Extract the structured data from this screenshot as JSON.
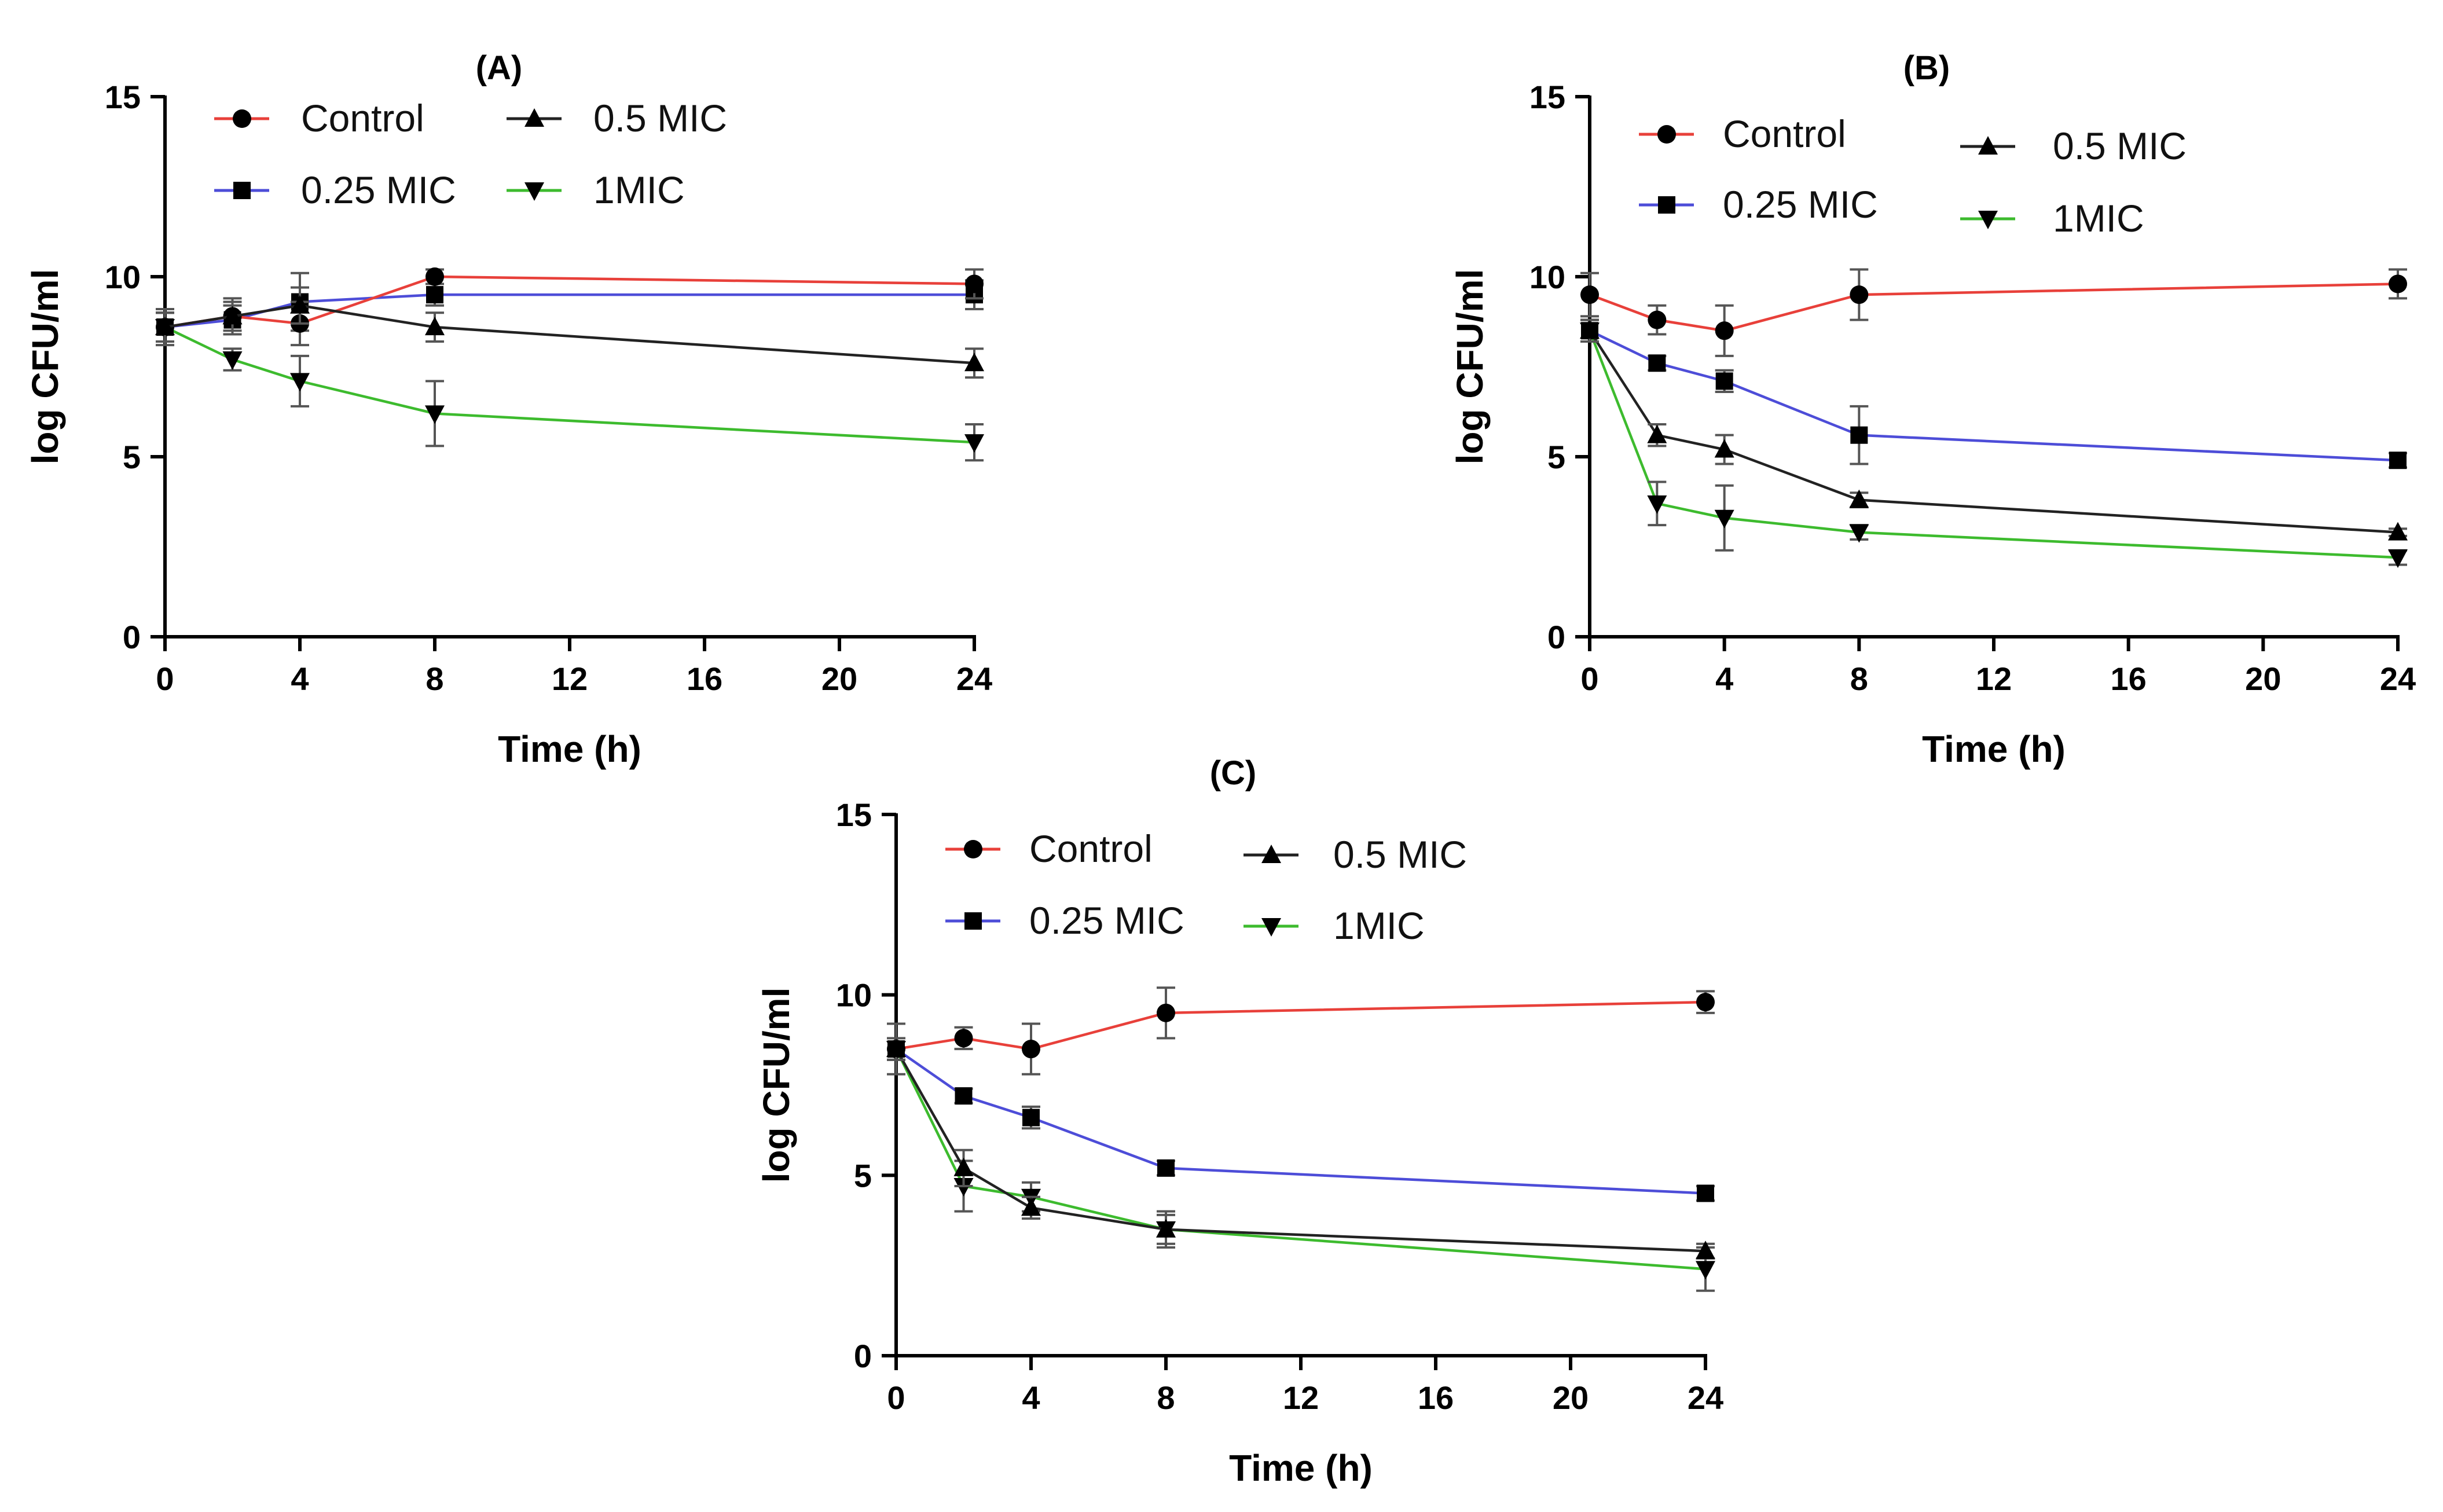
{
  "figure": {
    "panels": [
      "A",
      "B",
      "C"
    ]
  },
  "series_style": {
    "Control": {
      "color": "#e8403a",
      "marker": "circle"
    },
    "0.25 MIC": {
      "color": "#4d4dd8",
      "marker": "square"
    },
    "0.5 MIC": {
      "color": "#222222",
      "marker": "triangle-up"
    },
    "1MIC": {
      "color": "#3dbb2e",
      "marker": "triangle-down"
    }
  },
  "chart_data": [
    {
      "type": "line",
      "title": "(A)",
      "xlabel": "Time (h)",
      "ylabel": "log CFU/ml",
      "xlim": [
        0,
        24
      ],
      "ylim": [
        0,
        15
      ],
      "xticks": [
        0,
        4,
        8,
        12,
        16,
        20,
        24
      ],
      "yticks": [
        0,
        5,
        10,
        15
      ],
      "legend": {
        "placement": "top-left",
        "layout": "two-columns-interleaved",
        "order": [
          "Control",
          "0.5 MIC",
          "0.25 MIC",
          "1MIC"
        ]
      },
      "x": [
        0,
        2,
        4,
        8,
        24
      ],
      "series": [
        {
          "name": "Control",
          "values": [
            8.6,
            8.9,
            8.7,
            10.0,
            9.8
          ],
          "errors": [
            0.5,
            0.4,
            0.6,
            0.2,
            0.4
          ]
        },
        {
          "name": "0.25 MIC",
          "values": [
            8.6,
            8.8,
            9.3,
            9.5,
            9.5
          ],
          "errors": [
            0.4,
            0.4,
            0.8,
            0.3,
            0.4
          ]
        },
        {
          "name": "0.5 MIC",
          "values": [
            8.6,
            8.9,
            9.2,
            8.6,
            7.6
          ],
          "errors": [
            0.4,
            0.5,
            0.5,
            0.4,
            0.4
          ]
        },
        {
          "name": "1MIC",
          "values": [
            8.6,
            7.7,
            7.1,
            6.2,
            5.4
          ],
          "errors": [
            0.4,
            0.3,
            0.7,
            0.9,
            0.5
          ]
        }
      ]
    },
    {
      "type": "line",
      "title": "(B)",
      "xlabel": "Time (h)",
      "ylabel": "log CFU/ml",
      "xlim": [
        0,
        24
      ],
      "ylim": [
        0,
        15
      ],
      "xticks": [
        0,
        4,
        8,
        12,
        16,
        20,
        24
      ],
      "yticks": [
        0,
        5,
        10,
        15
      ],
      "legend": {
        "placement": "top-left",
        "layout": "two-columns-staggered",
        "order": [
          "Control",
          "0.5 MIC",
          "0.25 MIC",
          "1MIC"
        ]
      },
      "x": [
        0,
        2,
        4,
        8,
        24
      ],
      "series": [
        {
          "name": "Control",
          "values": [
            9.5,
            8.8,
            8.5,
            9.5,
            9.8
          ],
          "errors": [
            0.6,
            0.4,
            0.7,
            0.7,
            0.4
          ]
        },
        {
          "name": "0.25 MIC",
          "values": [
            8.5,
            7.6,
            7.1,
            5.6,
            4.9
          ],
          "errors": [
            0.3,
            0.2,
            0.3,
            0.8,
            0.2
          ]
        },
        {
          "name": "0.5 MIC",
          "values": [
            8.5,
            5.6,
            5.2,
            3.8,
            2.9
          ],
          "errors": [
            0.3,
            0.3,
            0.4,
            0.2,
            0.1
          ]
        },
        {
          "name": "1MIC",
          "values": [
            8.5,
            3.7,
            3.3,
            2.9,
            2.2
          ],
          "errors": [
            0.3,
            0.6,
            0.9,
            0.2,
            0.2
          ]
        }
      ]
    },
    {
      "type": "line",
      "title": "(C)",
      "xlabel": "Time (h)",
      "ylabel": "log CFU/ml",
      "xlim": [
        0,
        24
      ],
      "ylim": [
        0,
        15
      ],
      "xticks": [
        0,
        4,
        8,
        12,
        16,
        20,
        24
      ],
      "yticks": [
        0,
        5,
        10,
        15
      ],
      "legend": {
        "placement": "top-left",
        "layout": "two-columns-interleaved",
        "order": [
          "Control",
          "0.5 MIC",
          "0.25 MIC",
          "1MIC"
        ]
      },
      "x": [
        0,
        2,
        4,
        8,
        24
      ],
      "series": [
        {
          "name": "Control",
          "values": [
            8.5,
            8.8,
            8.5,
            9.5,
            9.8
          ],
          "errors": [
            0.7,
            0.3,
            0.7,
            0.7,
            0.3
          ]
        },
        {
          "name": "0.25 MIC",
          "values": [
            8.5,
            7.2,
            6.6,
            5.2,
            4.5
          ],
          "errors": [
            0.3,
            0.2,
            0.3,
            0.2,
            0.2
          ]
        },
        {
          "name": "0.5 MIC",
          "values": [
            8.5,
            5.2,
            4.1,
            3.5,
            2.9
          ],
          "errors": [
            0.3,
            0.5,
            0.3,
            0.4,
            0.2
          ]
        },
        {
          "name": "1MIC",
          "values": [
            8.5,
            4.7,
            4.4,
            3.5,
            2.4
          ],
          "errors": [
            0.3,
            0.7,
            0.4,
            0.5,
            0.6
          ]
        }
      ]
    }
  ]
}
